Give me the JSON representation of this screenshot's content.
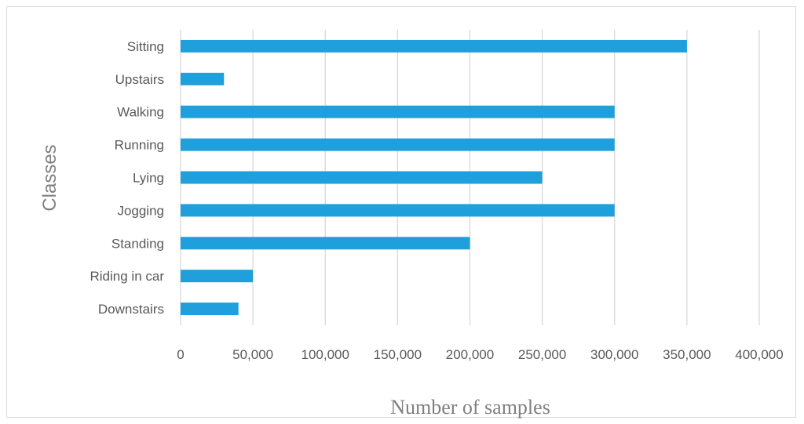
{
  "chart_data": {
    "type": "bar",
    "orientation": "horizontal",
    "categories": [
      "Sitting",
      "Upstairs",
      "Walking",
      "Running",
      "Lying",
      "Jogging",
      "Standing",
      "Riding in car",
      "Downstairs"
    ],
    "values": [
      350000,
      30000,
      300000,
      300000,
      250000,
      300000,
      200000,
      50000,
      40000
    ],
    "xlabel": "Number of samples",
    "ylabel": "Classes",
    "xlim": [
      0,
      400000
    ],
    "xticks": [
      "0",
      "50,000",
      "100,000",
      "150,000",
      "200,000",
      "250,000",
      "300,000",
      "350,000",
      "400,000"
    ],
    "grid": "vertical",
    "legend": "none",
    "colors": {
      "bar": "#1f9fdb",
      "grid": "#d9d9d9",
      "text": "#595959",
      "axis_title": "#7f7f7f"
    }
  }
}
